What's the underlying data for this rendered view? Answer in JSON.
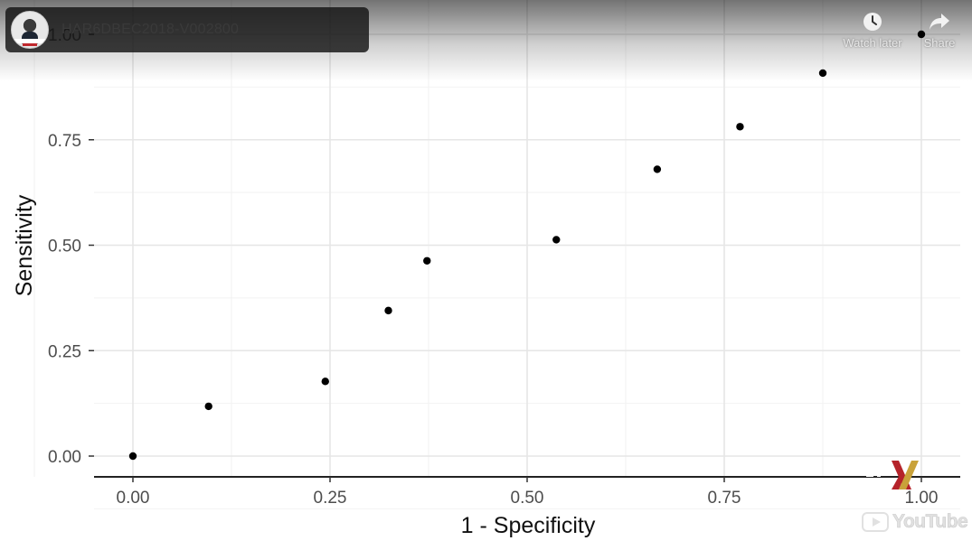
{
  "video": {
    "title": "HAR6DBEC2018-V002800",
    "channel_avatar_icon": "channel-avatar-icon"
  },
  "actions": {
    "watch_later_label": "Watch later",
    "share_label": "Share"
  },
  "branding": {
    "youtube_label": "YouTube",
    "mark_colors": [
      "#b5232a",
      "#c9a23a"
    ]
  },
  "chart_data": {
    "type": "scatter",
    "xlabel": "1 - Specificity",
    "ylabel": "Sensitivity",
    "xlim": [
      -0.1,
      1.1
    ],
    "ylim": [
      -0.05,
      1.05
    ],
    "x_ticks": [
      "0.00",
      "0.25",
      "0.50",
      "0.75",
      "1.00"
    ],
    "x_tick_values": [
      0,
      0.25,
      0.5,
      0.75,
      1.0
    ],
    "y_ticks": [
      "0.00",
      "0.25",
      "0.50",
      "0.75",
      "1.00"
    ],
    "y_tick_values": [
      0,
      0.25,
      0.5,
      0.75,
      1.0
    ],
    "grid": true,
    "points": [
      {
        "x": 0.0,
        "y": 0.0
      },
      {
        "x": 0.096,
        "y": 0.118
      },
      {
        "x": 0.244,
        "y": 0.177
      },
      {
        "x": 0.324,
        "y": 0.345
      },
      {
        "x": 0.373,
        "y": 0.463
      },
      {
        "x": 0.537,
        "y": 0.513
      },
      {
        "x": 0.665,
        "y": 0.68
      },
      {
        "x": 0.77,
        "y": 0.781
      },
      {
        "x": 0.875,
        "y": 0.908
      },
      {
        "x": 1.0,
        "y": 1.0
      }
    ]
  }
}
